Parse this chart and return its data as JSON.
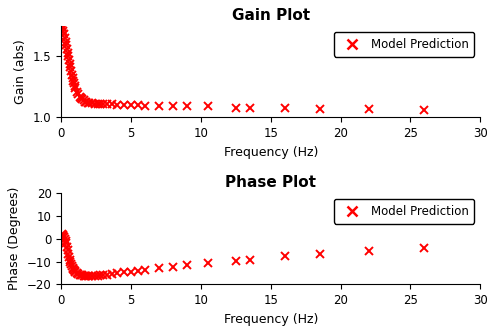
{
  "title_gain": "Gain Plot",
  "title_phase": "Phase Plot",
  "xlabel": "Frequency (Hz)",
  "ylabel_gain": "Gain (abs)",
  "ylabel_phase": "Phase (Degrees)",
  "xlim": [
    0,
    30
  ],
  "ylim_gain": [
    1.0,
    1.75
  ],
  "ylim_phase": [
    -20,
    20
  ],
  "xticks": [
    0,
    5,
    10,
    15,
    20,
    25,
    30
  ],
  "yticks_gain": [
    1.0,
    1.5
  ],
  "yticks_phase": [
    -20,
    -10,
    0,
    10,
    20
  ],
  "legend_label": "Model Prediction",
  "marker_color": "#FF0000",
  "background_color": "#FFFFFF",
  "dense_freq": [
    0.05,
    0.1,
    0.15,
    0.2,
    0.25,
    0.3,
    0.35,
    0.4,
    0.45,
    0.5,
    0.55,
    0.6,
    0.65,
    0.7,
    0.75,
    0.8,
    0.85,
    0.9,
    0.95,
    1.0,
    1.1,
    1.2,
    1.3,
    1.4,
    1.5,
    1.6,
    1.7,
    1.8,
    1.9,
    2.0,
    2.2,
    2.4,
    2.6,
    2.8,
    3.0,
    3.3,
    3.6,
    4.0
  ],
  "sparse_freq": [
    4.5,
    5.0,
    5.5,
    6.0,
    7.0,
    8.0,
    9.0,
    10.5,
    12.5,
    13.5,
    16.0,
    18.5,
    22.0,
    26.0
  ],
  "gain_dense": [
    1.75,
    1.73,
    1.71,
    1.68,
    1.65,
    1.62,
    1.59,
    1.56,
    1.53,
    1.5,
    1.47,
    1.44,
    1.41,
    1.38,
    1.35,
    1.32,
    1.3,
    1.28,
    1.26,
    1.24,
    1.21,
    1.19,
    1.17,
    1.16,
    1.15,
    1.14,
    1.13,
    1.13,
    1.12,
    1.12,
    1.12,
    1.11,
    1.11,
    1.11,
    1.11,
    1.11,
    1.11,
    1.1
  ],
  "gain_sparse": [
    1.1,
    1.1,
    1.1,
    1.09,
    1.09,
    1.09,
    1.09,
    1.09,
    1.08,
    1.08,
    1.08,
    1.07,
    1.07,
    1.06
  ],
  "phase_dense": [
    2.0,
    1.5,
    1.0,
    0.5,
    0.0,
    -1.0,
    -2.0,
    -3.5,
    -5.0,
    -6.5,
    -8.0,
    -9.2,
    -10.3,
    -11.2,
    -12.0,
    -12.7,
    -13.3,
    -13.8,
    -14.2,
    -14.5,
    -15.0,
    -15.4,
    -15.7,
    -15.9,
    -16.1,
    -16.2,
    -16.3,
    -16.4,
    -16.4,
    -16.4,
    -16.4,
    -16.3,
    -16.2,
    -16.1,
    -16.0,
    -15.8,
    -15.5,
    -15.2
  ],
  "phase_sparse": [
    -14.8,
    -14.5,
    -14.0,
    -13.5,
    -12.8,
    -12.2,
    -11.6,
    -10.8,
    -9.8,
    -9.3,
    -7.8,
    -6.8,
    -5.5,
    -4.0
  ]
}
